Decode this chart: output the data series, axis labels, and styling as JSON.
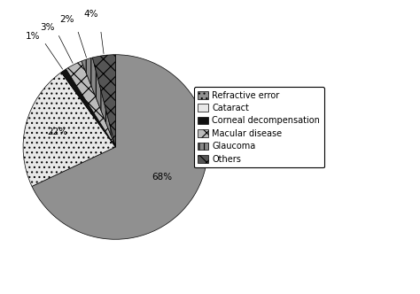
{
  "labels": [
    "Refractive error",
    "Cataract",
    "Corneal decompensation",
    "Macular disease",
    "Glaucoma",
    "Others"
  ],
  "values": [
    68,
    22,
    1,
    3,
    2,
    4
  ],
  "colors": [
    "#909090",
    "#e8e8e8",
    "#111111",
    "#bbbbbb",
    "#888888",
    "#555555"
  ],
  "hatch_styles": [
    "",
    "...",
    "",
    "xx",
    "|||",
    "xx"
  ],
  "legend_hatch_styles": [
    "...",
    "",
    "",
    "xx",
    "|||",
    "xx"
  ],
  "startangle": 90,
  "background_color": "#ffffff",
  "font_size": 7.5
}
